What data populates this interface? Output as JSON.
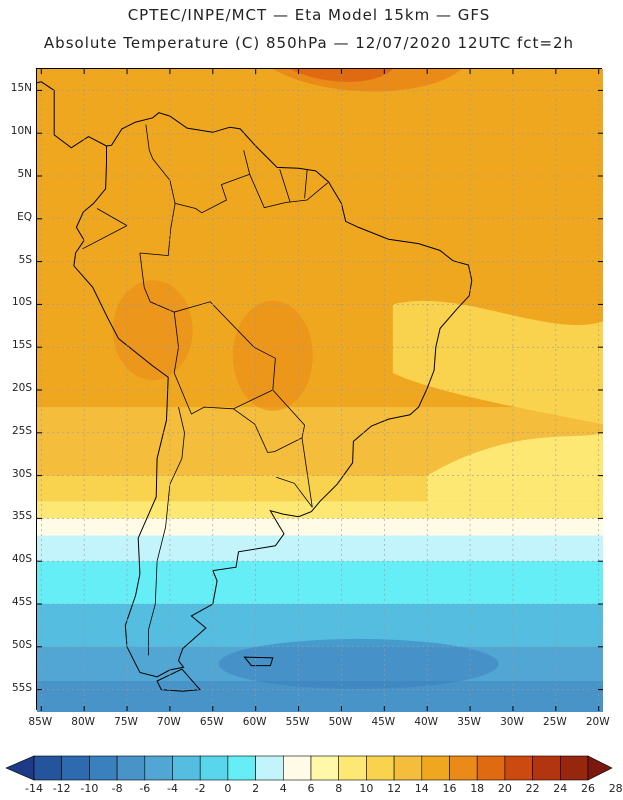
{
  "header": {
    "line1": "CPTEC/INPE/MCT —  Eta Model 15km — GFS",
    "line2": "Absolute Temperature (C) 850hPa — 12/07/2020 12UTC fct=2h"
  },
  "map": {
    "lat_labels": [
      "15N",
      "10N",
      "5N",
      "EQ",
      "5S",
      "10S",
      "15S",
      "20S",
      "25S",
      "30S",
      "35S",
      "40S",
      "45S",
      "50S",
      "55S"
    ],
    "lon_labels": [
      "85W",
      "80W",
      "75W",
      "70W",
      "65W",
      "60W",
      "55W",
      "50W",
      "45W",
      "40W",
      "35W",
      "30W",
      "25W",
      "20W"
    ],
    "lat_range": [
      17.5,
      -57.5
    ],
    "lon_range": [
      -85.5,
      -19.5
    ],
    "field": "temperature at 850hPa (C)"
  },
  "colorbar": {
    "ticks": [
      "-14",
      "-12",
      "-10",
      "-8",
      "-6",
      "-4",
      "-2",
      "0",
      "2",
      "4",
      "6",
      "8",
      "10",
      "12",
      "14",
      "16",
      "18",
      "20",
      "22",
      "24",
      "26",
      "28"
    ],
    "colors": [
      "#1e3a86",
      "#24549c",
      "#2e6aaf",
      "#3b80be",
      "#4893c8",
      "#52a6d4",
      "#55bde0",
      "#5ad6ec",
      "#66eef6",
      "#c4f4fb",
      "#fffbe6",
      "#fff8a8",
      "#fde874",
      "#f9d24e",
      "#f4bd3c",
      "#f0a720",
      "#ea8a17",
      "#e06a12",
      "#cc4a10",
      "#b33510",
      "#97260f",
      "#7a170f"
    ]
  }
}
